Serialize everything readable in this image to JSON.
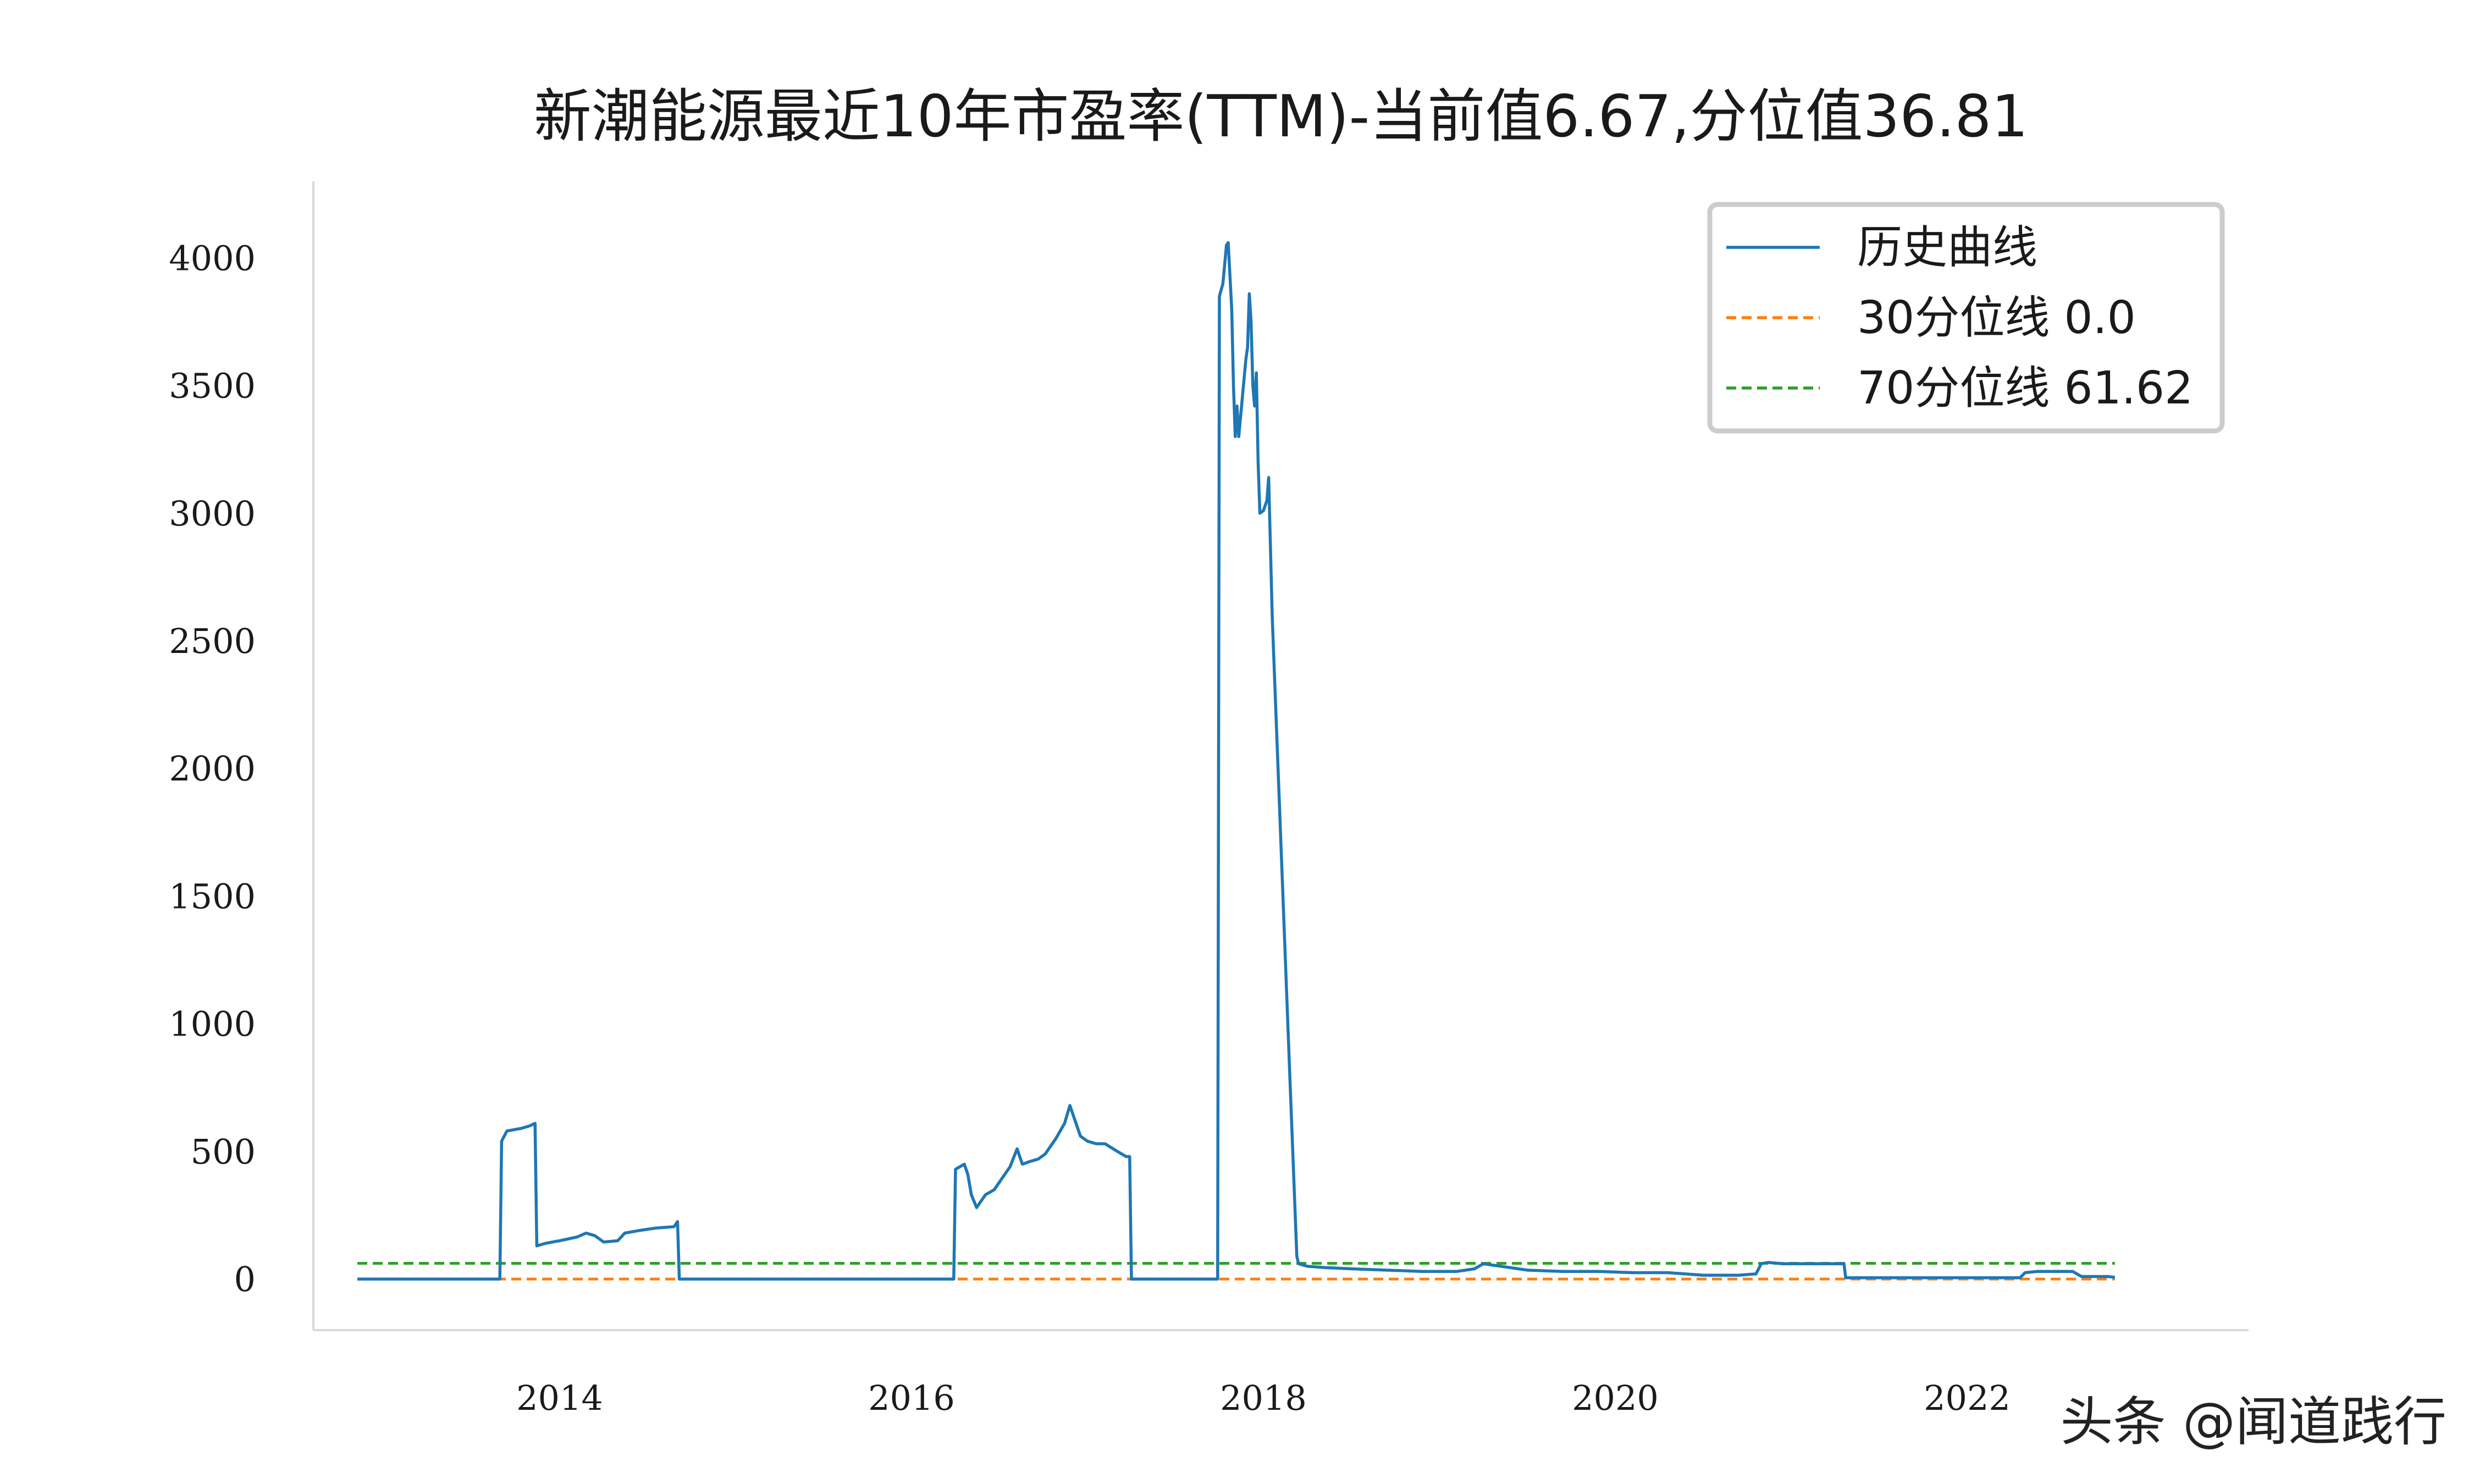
{
  "chart_data": {
    "type": "line",
    "title": "新潮能源最近10年市盈率(TTM)-当前值6.67,分位值36.81",
    "xlabel": "",
    "ylabel": "",
    "x_ticks": [
      "2014",
      "2016",
      "2018",
      "2020",
      "2022"
    ],
    "y_ticks": [
      "0",
      "500",
      "1000",
      "1500",
      "2000",
      "2500",
      "3000",
      "3500",
      "4000"
    ],
    "xlim": [
      2012.6,
      2023.6
    ],
    "ylim": [
      -200,
      4300
    ],
    "grid": false,
    "legend_position": "top-right",
    "series": [
      {
        "name": "历史曲线",
        "color": "#1f77b4",
        "style": "solid",
        "points": [
          [
            2012.85,
            0
          ],
          [
            2013.66,
            0
          ],
          [
            2013.67,
            540
          ],
          [
            2013.7,
            580
          ],
          [
            2013.78,
            590
          ],
          [
            2013.83,
            600
          ],
          [
            2013.86,
            610
          ],
          [
            2013.87,
            130
          ],
          [
            2013.92,
            140
          ],
          [
            2014.0,
            150
          ],
          [
            2014.1,
            165
          ],
          [
            2014.15,
            180
          ],
          [
            2014.2,
            170
          ],
          [
            2014.25,
            145
          ],
          [
            2014.33,
            150
          ],
          [
            2014.37,
            180
          ],
          [
            2014.45,
            190
          ],
          [
            2014.55,
            200
          ],
          [
            2014.65,
            205
          ],
          [
            2014.67,
            225
          ],
          [
            2014.68,
            0
          ],
          [
            2016.24,
            0
          ],
          [
            2016.25,
            430
          ],
          [
            2016.3,
            450
          ],
          [
            2016.32,
            410
          ],
          [
            2016.34,
            330
          ],
          [
            2016.37,
            280
          ],
          [
            2016.42,
            330
          ],
          [
            2016.47,
            350
          ],
          [
            2016.52,
            400
          ],
          [
            2016.56,
            440
          ],
          [
            2016.6,
            510
          ],
          [
            2016.63,
            450
          ],
          [
            2016.67,
            460
          ],
          [
            2016.72,
            470
          ],
          [
            2016.76,
            490
          ],
          [
            2016.82,
            550
          ],
          [
            2016.87,
            610
          ],
          [
            2016.9,
            680
          ],
          [
            2016.93,
            620
          ],
          [
            2016.96,
            560
          ],
          [
            2017.0,
            540
          ],
          [
            2017.05,
            530
          ],
          [
            2017.1,
            530
          ],
          [
            2017.17,
            500
          ],
          [
            2017.22,
            480
          ],
          [
            2017.24,
            480
          ],
          [
            2017.25,
            0
          ],
          [
            2017.74,
            0
          ],
          [
            2017.75,
            3850
          ],
          [
            2017.77,
            3900
          ],
          [
            2017.79,
            4050
          ],
          [
            2017.8,
            4060
          ],
          [
            2017.82,
            3800
          ],
          [
            2017.83,
            3500
          ],
          [
            2017.84,
            3300
          ],
          [
            2017.85,
            3420
          ],
          [
            2017.86,
            3300
          ],
          [
            2017.88,
            3450
          ],
          [
            2017.9,
            3600
          ],
          [
            2017.91,
            3650
          ],
          [
            2017.92,
            3860
          ],
          [
            2017.93,
            3750
          ],
          [
            2017.94,
            3500
          ],
          [
            2017.95,
            3420
          ],
          [
            2017.96,
            3550
          ],
          [
            2017.97,
            3200
          ],
          [
            2017.98,
            3000
          ],
          [
            2018.0,
            3010
          ],
          [
            2018.02,
            3050
          ],
          [
            2018.03,
            3140
          ],
          [
            2018.05,
            2600
          ],
          [
            2018.1,
            1700
          ],
          [
            2018.15,
            800
          ],
          [
            2018.19,
            90
          ],
          [
            2018.2,
            60
          ],
          [
            2018.25,
            50
          ],
          [
            2018.35,
            45
          ],
          [
            2018.5,
            40
          ],
          [
            2018.7,
            35
          ],
          [
            2018.9,
            30
          ],
          [
            2019.1,
            30
          ],
          [
            2019.2,
            40
          ],
          [
            2019.25,
            60
          ],
          [
            2019.3,
            55
          ],
          [
            2019.4,
            45
          ],
          [
            2019.5,
            35
          ],
          [
            2019.7,
            30
          ],
          [
            2019.9,
            30
          ],
          [
            2020.1,
            25
          ],
          [
            2020.3,
            25
          ],
          [
            2020.5,
            15
          ],
          [
            2020.7,
            15
          ],
          [
            2020.8,
            20
          ],
          [
            2020.83,
            60
          ],
          [
            2020.87,
            65
          ],
          [
            2020.95,
            60
          ],
          [
            2021.1,
            60
          ],
          [
            2021.3,
            60
          ],
          [
            2021.31,
            5
          ],
          [
            2022.3,
            5
          ],
          [
            2022.33,
            25
          ],
          [
            2022.4,
            30
          ],
          [
            2022.6,
            30
          ],
          [
            2022.65,
            10
          ],
          [
            2022.8,
            10
          ],
          [
            2022.84,
            6.67
          ]
        ]
      },
      {
        "name": "30分位线 0.0",
        "color": "#ff7f0e",
        "style": "dashed",
        "y": 0.0,
        "x_range": [
          2012.85,
          2022.84
        ]
      },
      {
        "name": "70分位线 61.62",
        "color": "#2ca02c",
        "style": "dashed",
        "y": 61.62,
        "x_range": [
          2012.85,
          2022.84
        ]
      }
    ]
  },
  "watermark": {
    "text": "头条 @闻道践行",
    "color": "#222222"
  }
}
